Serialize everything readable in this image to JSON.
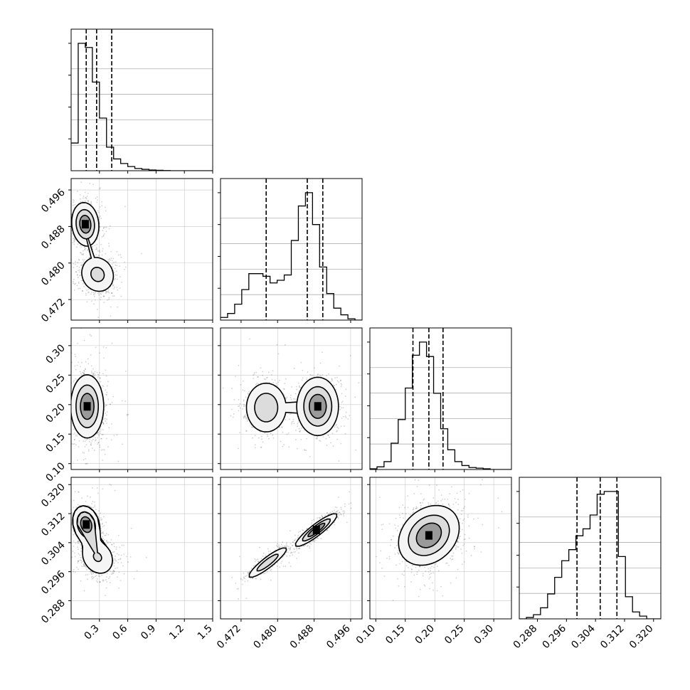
{
  "chart_data": {
    "type": "corner",
    "title": "",
    "ndim": 4,
    "parameter_labels": [
      "",
      "",
      "",
      ""
    ],
    "dims": [
      {
        "range": [
          0.0,
          1.5
        ],
        "ticks": [
          0.3,
          0.6,
          0.9,
          1.2,
          1.5
        ],
        "tick_labels": [
          "0.3",
          "0.6",
          "0.9",
          "1.2",
          "1.5"
        ],
        "quantiles": [
          0.16,
          0.27,
          0.43
        ],
        "histogram": {
          "bin_edges": [
            0.0,
            0.075,
            0.15,
            0.225,
            0.3,
            0.375,
            0.45,
            0.525,
            0.6,
            0.675,
            0.75,
            0.825,
            0.9,
            0.975,
            1.05,
            1.125,
            1.2,
            1.275,
            1.35,
            1.425,
            1.5
          ],
          "counts": [
            0.2,
            0.92,
            0.89,
            0.64,
            0.38,
            0.17,
            0.085,
            0.052,
            0.03,
            0.016,
            0.01,
            0.005,
            0.003,
            0.001,
            0,
            0,
            0,
            0,
            0,
            0
          ]
        }
      },
      {
        "range": [
          0.4675,
          0.4985
        ],
        "ticks": [
          0.472,
          0.48,
          0.488,
          0.496
        ],
        "tick_labels": [
          "0.472",
          "0.480",
          "0.488",
          "0.496"
        ],
        "quantiles": [
          0.4775,
          0.4865,
          0.4899
        ],
        "histogram": {
          "bin_edges": [
            0.4675,
            0.46905,
            0.4706,
            0.47215,
            0.4737,
            0.47525,
            0.4768,
            0.47835,
            0.4799,
            0.48145,
            0.483,
            0.48455,
            0.4861,
            0.48765,
            0.4892,
            0.49075,
            0.4923,
            0.49385,
            0.4954,
            0.49695,
            0.4985
          ],
          "counts": [
            0.02,
            0.05,
            0.12,
            0.23,
            0.35,
            0.35,
            0.33,
            0.28,
            0.3,
            0.34,
            0.6,
            0.86,
            0.96,
            0.72,
            0.4,
            0.2,
            0.09,
            0.04,
            0.01,
            0
          ]
        }
      },
      {
        "range": [
          0.09,
          0.33
        ],
        "ticks": [
          0.1,
          0.15,
          0.2,
          0.25,
          0.3
        ],
        "tick_labels": [
          "0.10",
          "0.15",
          "0.20",
          "0.25",
          "0.30"
        ],
        "quantiles": [
          0.163,
          0.19,
          0.214
        ],
        "histogram": {
          "bin_edges": [
            0.09,
            0.102,
            0.114,
            0.126,
            0.138,
            0.15,
            0.162,
            0.174,
            0.186,
            0.198,
            0.21,
            0.222,
            0.234,
            0.246,
            0.258,
            0.27,
            0.282,
            0.294,
            0.306,
            0.318,
            0.33
          ],
          "counts": [
            0.005,
            0.02,
            0.06,
            0.2,
            0.38,
            0.62,
            0.87,
            0.97,
            0.86,
            0.58,
            0.31,
            0.15,
            0.06,
            0.03,
            0.015,
            0.01,
            0.005,
            0,
            0,
            0
          ]
        }
      },
      {
        "range": [
          0.283,
          0.322
        ],
        "ticks": [
          0.288,
          0.296,
          0.304,
          0.312,
          0.32
        ],
        "tick_labels": [
          "0.288",
          "0.296",
          "0.304",
          "0.312",
          "0.320"
        ],
        "quantiles": [
          0.2989,
          0.3053,
          0.3099
        ],
        "histogram": {
          "bin_edges": [
            0.283,
            0.28495,
            0.2869,
            0.28885,
            0.2908,
            0.29275,
            0.2947,
            0.29665,
            0.2986,
            0.30055,
            0.3025,
            0.30445,
            0.3064,
            0.30835,
            0.3103,
            0.31225,
            0.3142,
            0.31615,
            0.3181,
            0.32005,
            0.322
          ],
          "counts": [
            0,
            0.01,
            0.03,
            0.08,
            0.18,
            0.3,
            0.42,
            0.5,
            0.6,
            0.65,
            0.75,
            0.9,
            0.92,
            0.92,
            0.45,
            0.16,
            0.05,
            0.02,
            0,
            0
          ]
        }
      }
    ],
    "pairs": [
      {
        "x": 0,
        "y": 1,
        "centers": [
          {
            "x": 0.15,
            "y": 0.4885,
            "sx": 0.07,
            "sy": 0.0023,
            "w": 0.6,
            "rho": -0.1
          },
          {
            "x": 0.28,
            "y": 0.4775,
            "sx": 0.1,
            "sy": 0.0022,
            "w": 0.4,
            "rho": -0.1
          }
        ]
      },
      {
        "x": 0,
        "y": 2,
        "centers": [
          {
            "x": 0.17,
            "y": 0.197,
            "sx": 0.085,
            "sy": 0.026,
            "w": 1.0,
            "rho": 0.0
          }
        ]
      },
      {
        "x": 1,
        "y": 2,
        "centers": [
          {
            "x": 0.4775,
            "y": 0.195,
            "sx": 0.0023,
            "sy": 0.022,
            "w": 0.4,
            "rho": 0.0
          },
          {
            "x": 0.4888,
            "y": 0.197,
            "sx": 0.0022,
            "sy": 0.024,
            "w": 0.6,
            "rho": 0.0
          }
        ]
      },
      {
        "x": 0,
        "y": 3,
        "centers": [
          {
            "x": 0.16,
            "y": 0.309,
            "sx": 0.07,
            "sy": 0.0025,
            "w": 0.6,
            "rho": -0.2
          },
          {
            "x": 0.28,
            "y": 0.3,
            "sx": 0.1,
            "sy": 0.0028,
            "w": 0.4,
            "rho": -0.2
          }
        ]
      },
      {
        "x": 1,
        "y": 3,
        "centers": [
          {
            "x": 0.4778,
            "y": 0.2985,
            "sx": 0.0022,
            "sy": 0.0022,
            "w": 0.4,
            "rho": 0.9
          },
          {
            "x": 0.4885,
            "y": 0.3075,
            "sx": 0.0022,
            "sy": 0.0022,
            "w": 0.6,
            "rho": 0.9
          }
        ]
      },
      {
        "x": 2,
        "y": 3,
        "centers": [
          {
            "x": 0.19,
            "y": 0.306,
            "sx": 0.025,
            "sy": 0.004,
            "w": 1.0,
            "rho": 0.25
          }
        ]
      }
    ]
  }
}
